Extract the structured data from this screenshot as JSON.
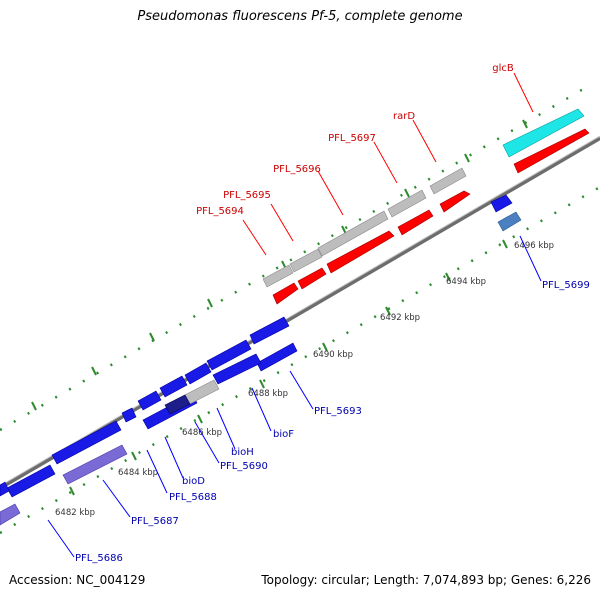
{
  "title": "Pseudomonas fluorescens Pf-5, complete genome",
  "footer": {
    "accession": "Accession: NC_004129",
    "summary": "Topology: circular; Length: 7,074,893 bp; Genes: 6,226"
  },
  "colors": {
    "backbone": "#888888",
    "tick": "#2e8b2e",
    "red": "#ff0000",
    "red_label": "#cc0000",
    "blue": "#1a1ae6",
    "blue_label": "#0000b0",
    "grey": "#bdbdbd",
    "cyan": "#1ee6e6",
    "purple": "#7a6ad6",
    "steel": "#4a7fc0"
  },
  "scale": {
    "unit": "kbp",
    "ticks": [
      {
        "kbp": 6482,
        "label": "6482 kbp"
      },
      {
        "kbp": 6484,
        "label": "6484 kbp"
      },
      {
        "kbp": 6486,
        "label": "6486 kbp"
      },
      {
        "kbp": 6488,
        "label": "6488 kbp"
      },
      {
        "kbp": 6490,
        "label": "6490 kbp"
      },
      {
        "kbp": 6492,
        "label": "6492 kbp"
      },
      {
        "kbp": 6494,
        "label": "6494 kbp"
      },
      {
        "kbp": 6496,
        "label": "6496 kbp"
      }
    ]
  },
  "upper_labels": [
    "glcB",
    "rarD",
    "PFL_5697",
    "PFL_5696",
    "PFL_5695",
    "PFL_5694"
  ],
  "lower_labels": [
    "PFL_5699",
    "PFL_5693",
    "bioF",
    "bioH",
    "PFL_5690",
    "bioD",
    "PFL_5688",
    "PFL_5687",
    "PFL_5686"
  ]
}
